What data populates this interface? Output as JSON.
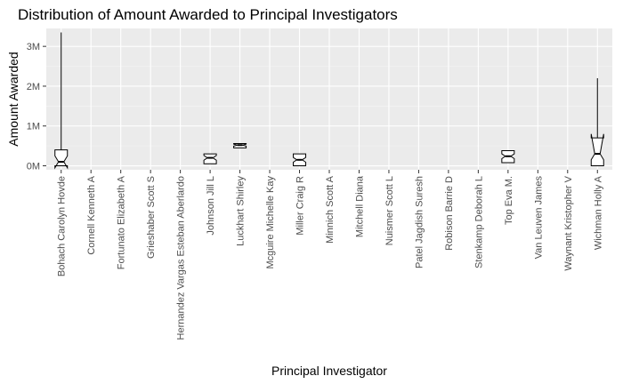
{
  "chart_data": {
    "type": "boxplot",
    "title": "Distribution of Amount Awarded to Principal Investigators",
    "xlabel": "Principal Investigator",
    "ylabel": "Amount Awarded",
    "notched": true,
    "grid": true,
    "ylim": [
      -100000,
      3450000
    ],
    "y_ticks": [
      {
        "value": 0,
        "label": "0M"
      },
      {
        "value": 1000000,
        "label": "1M"
      },
      {
        "value": 2000000,
        "label": "2M"
      },
      {
        "value": 3000000,
        "label": "3M"
      }
    ],
    "categories": [
      "Bohach Carolyn Hovde",
      "Cornell Kenneth A",
      "Fortunato Elizabeth A",
      "Grieshaber Scott S",
      "Hernandez Vargas Esteban Aberlardo",
      "Johnson Jill L",
      "Luckhart Shirley",
      "Mcguire Michelle Kay",
      "Miller Craig R",
      "Minnich Scott A",
      "Mitchell Diana",
      "Nuismer Scott L",
      "Patel Jagdish Suresh",
      "Robison Barrie D",
      "Stenkamp Deborah L",
      "Top Eva M.",
      "Van Leuven James",
      "Waynant Kristopher V",
      "Wichman Holly A"
    ],
    "boxes": [
      {
        "category": "Bohach Carolyn Hovde",
        "min": 0,
        "q1": 0,
        "median": 100000,
        "q3": 400000,
        "max": 3350000,
        "notch_low": -50000,
        "notch_high": 250000
      },
      {
        "category": "Johnson Jill L",
        "min": 50000,
        "q1": 50000,
        "median": 200000,
        "q3": 300000,
        "max": 300000,
        "notch_low": 140000,
        "notch_high": 260000
      },
      {
        "category": "Luckhart Shirley",
        "min": 450000,
        "q1": 450000,
        "median": 520000,
        "q3": 560000,
        "max": 560000,
        "notch_low": 495000,
        "notch_high": 545000
      },
      {
        "category": "Miller Craig R",
        "min": 0,
        "q1": 0,
        "median": 150000,
        "q3": 300000,
        "max": 300000,
        "notch_low": 90000,
        "notch_high": 210000
      },
      {
        "category": "Top Eva M.",
        "min": 80000,
        "q1": 80000,
        "median": 240000,
        "q3": 380000,
        "max": 380000,
        "notch_low": 180000,
        "notch_high": 300000
      },
      {
        "category": "Wichman Holly A",
        "min": 0,
        "q1": 0,
        "median": 300000,
        "q3": 700000,
        "max": 2200000,
        "notch_low": 150000,
        "notch_high": 800000
      }
    ]
  }
}
